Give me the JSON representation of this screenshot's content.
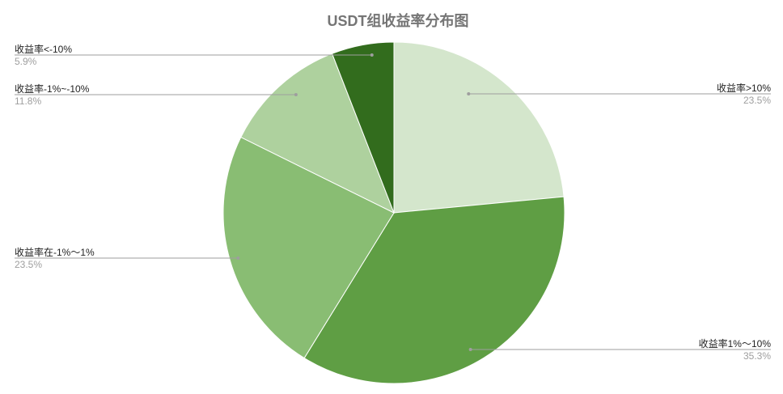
{
  "chart_data": {
    "type": "pie",
    "title": "USDT组收益率分布图",
    "start_angle_deg": 0,
    "direction": "clockwise",
    "legend": "labels-outside",
    "slices": [
      {
        "label": "收益率>10%",
        "value": 23.5,
        "display": "23.5%",
        "color": "#d4e6cc"
      },
      {
        "label": "收益率1%～10%",
        "value": 35.3,
        "display": "35.3%",
        "color": "#5f9e44"
      },
      {
        "label": "收益率在-1%～1%",
        "value": 23.5,
        "display": "23.5%",
        "color": "#89bd73"
      },
      {
        "label": "收益率-1%~-10%",
        "value": 11.8,
        "display": "11.8%",
        "color": "#aed19e"
      },
      {
        "label": "收益率<-10%",
        "value": 5.9,
        "display": "5.9%",
        "color": "#326c1d"
      }
    ]
  }
}
